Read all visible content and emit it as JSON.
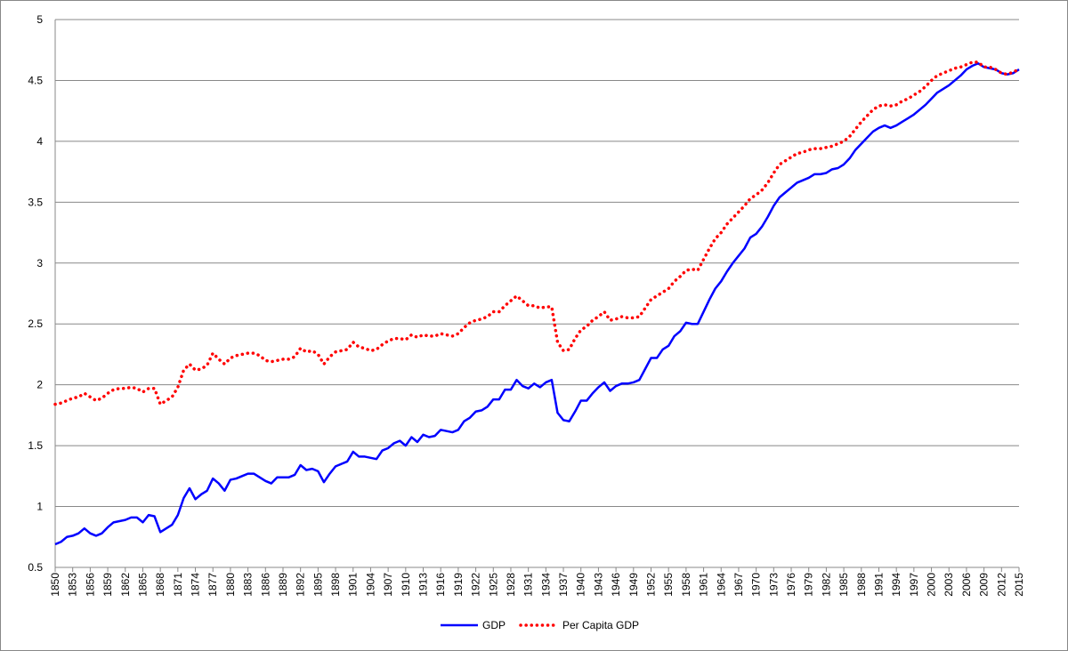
{
  "chart_data": {
    "type": "line",
    "x": [
      1850,
      1851,
      1852,
      1853,
      1854,
      1855,
      1856,
      1857,
      1858,
      1859,
      1860,
      1861,
      1862,
      1863,
      1864,
      1865,
      1866,
      1867,
      1868,
      1869,
      1870,
      1871,
      1872,
      1873,
      1874,
      1875,
      1876,
      1877,
      1878,
      1879,
      1880,
      1881,
      1882,
      1883,
      1884,
      1885,
      1886,
      1887,
      1888,
      1889,
      1890,
      1891,
      1892,
      1893,
      1894,
      1895,
      1896,
      1897,
      1898,
      1899,
      1900,
      1901,
      1902,
      1903,
      1904,
      1905,
      1906,
      1907,
      1908,
      1909,
      1910,
      1911,
      1912,
      1913,
      1914,
      1915,
      1916,
      1917,
      1918,
      1919,
      1920,
      1921,
      1922,
      1923,
      1924,
      1925,
      1926,
      1927,
      1928,
      1929,
      1930,
      1931,
      1932,
      1933,
      1934,
      1935,
      1936,
      1937,
      1938,
      1939,
      1940,
      1941,
      1942,
      1943,
      1944,
      1945,
      1946,
      1947,
      1948,
      1949,
      1950,
      1951,
      1952,
      1953,
      1954,
      1955,
      1956,
      1957,
      1958,
      1959,
      1960,
      1961,
      1962,
      1963,
      1964,
      1965,
      1966,
      1967,
      1968,
      1969,
      1970,
      1971,
      1972,
      1973,
      1974,
      1975,
      1976,
      1977,
      1978,
      1979,
      1980,
      1981,
      1982,
      1983,
      1984,
      1985,
      1986,
      1987,
      1988,
      1989,
      1990,
      1991,
      1992,
      1993,
      1994,
      1995,
      1996,
      1997,
      1998,
      1999,
      2000,
      2001,
      2002,
      2003,
      2004,
      2005,
      2006,
      2007,
      2008,
      2009,
      2010,
      2011,
      2012,
      2013,
      2014,
      2015
    ],
    "series": [
      {
        "name": "GDP",
        "color": "#0000ff",
        "style": "solid",
        "values": [
          0.69,
          0.71,
          0.75,
          0.76,
          0.78,
          0.82,
          0.78,
          0.76,
          0.78,
          0.83,
          0.87,
          0.88,
          0.89,
          0.91,
          0.91,
          0.87,
          0.93,
          0.92,
          0.79,
          0.82,
          0.85,
          0.93,
          1.07,
          1.15,
          1.06,
          1.1,
          1.13,
          1.23,
          1.19,
          1.13,
          1.22,
          1.23,
          1.25,
          1.27,
          1.27,
          1.24,
          1.21,
          1.19,
          1.24,
          1.24,
          1.24,
          1.26,
          1.34,
          1.3,
          1.31,
          1.29,
          1.2,
          1.27,
          1.33,
          1.35,
          1.37,
          1.45,
          1.41,
          1.41,
          1.4,
          1.39,
          1.46,
          1.48,
          1.52,
          1.54,
          1.5,
          1.57,
          1.53,
          1.59,
          1.57,
          1.58,
          1.63,
          1.62,
          1.61,
          1.63,
          1.7,
          1.73,
          1.78,
          1.79,
          1.82,
          1.88,
          1.88,
          1.96,
          1.96,
          2.04,
          1.99,
          1.97,
          2.01,
          1.98,
          2.02,
          2.04,
          1.77,
          1.71,
          1.7,
          1.78,
          1.87,
          1.87,
          1.93,
          1.98,
          2.02,
          1.95,
          1.99,
          2.01,
          2.01,
          2.02,
          2.04,
          2.13,
          2.22,
          2.22,
          2.29,
          2.32,
          2.4,
          2.44,
          2.51,
          2.5,
          2.5,
          2.6,
          2.7,
          2.79,
          2.85,
          2.93,
          3.0,
          3.06,
          3.12,
          3.21,
          3.24,
          3.3,
          3.38,
          3.47,
          3.54,
          3.58,
          3.62,
          3.66,
          3.68,
          3.7,
          3.73,
          3.73,
          3.74,
          3.77,
          3.78,
          3.81,
          3.86,
          3.93,
          3.98,
          4.03,
          4.08,
          4.11,
          4.13,
          4.11,
          4.13,
          4.16,
          4.19,
          4.22,
          4.26,
          4.3,
          4.35,
          4.4,
          4.43,
          4.46,
          4.5,
          4.54,
          4.59,
          4.62,
          4.64,
          4.61,
          4.6,
          4.59,
          4.56,
          4.55,
          4.56,
          4.59
        ]
      },
      {
        "name": "Per Capita GDP",
        "color": "#ff0000",
        "style": "dotted",
        "values": [
          1.84,
          1.85,
          1.87,
          1.89,
          1.9,
          1.93,
          1.9,
          1.87,
          1.89,
          1.93,
          1.96,
          1.97,
          1.97,
          1.98,
          1.97,
          1.94,
          1.97,
          1.97,
          1.84,
          1.87,
          1.9,
          1.98,
          2.12,
          2.17,
          2.12,
          2.13,
          2.16,
          2.26,
          2.21,
          2.17,
          2.22,
          2.24,
          2.25,
          2.26,
          2.26,
          2.24,
          2.2,
          2.19,
          2.2,
          2.21,
          2.21,
          2.23,
          2.3,
          2.27,
          2.28,
          2.25,
          2.17,
          2.23,
          2.27,
          2.28,
          2.29,
          2.35,
          2.31,
          2.3,
          2.28,
          2.29,
          2.33,
          2.36,
          2.38,
          2.38,
          2.37,
          2.41,
          2.39,
          2.41,
          2.4,
          2.4,
          2.42,
          2.41,
          2.4,
          2.42,
          2.47,
          2.51,
          2.53,
          2.54,
          2.56,
          2.6,
          2.6,
          2.65,
          2.69,
          2.73,
          2.69,
          2.65,
          2.65,
          2.63,
          2.64,
          2.64,
          2.35,
          2.28,
          2.29,
          2.38,
          2.45,
          2.48,
          2.53,
          2.56,
          2.6,
          2.53,
          2.54,
          2.56,
          2.55,
          2.55,
          2.56,
          2.63,
          2.7,
          2.73,
          2.76,
          2.79,
          2.85,
          2.89,
          2.94,
          2.95,
          2.94,
          3.03,
          3.12,
          3.2,
          3.25,
          3.32,
          3.37,
          3.42,
          3.47,
          3.53,
          3.56,
          3.6,
          3.66,
          3.74,
          3.81,
          3.84,
          3.87,
          3.9,
          3.91,
          3.93,
          3.94,
          3.94,
          3.95,
          3.96,
          3.98,
          4.0,
          4.04,
          4.1,
          4.16,
          4.21,
          4.26,
          4.29,
          4.3,
          4.29,
          4.3,
          4.33,
          4.35,
          4.38,
          4.41,
          4.45,
          4.5,
          4.54,
          4.56,
          4.58,
          4.6,
          4.61,
          4.63,
          4.65,
          4.65,
          4.61,
          4.61,
          4.59,
          4.56,
          4.55,
          4.57,
          4.59
        ]
      }
    ],
    "xlim": [
      1850,
      2015
    ],
    "xticks": [
      1850,
      1853,
      1856,
      1859,
      1862,
      1865,
      1868,
      1871,
      1874,
      1877,
      1880,
      1883,
      1886,
      1889,
      1892,
      1895,
      1898,
      1901,
      1904,
      1907,
      1910,
      1913,
      1916,
      1919,
      1922,
      1925,
      1928,
      1931,
      1934,
      1937,
      1940,
      1943,
      1946,
      1949,
      1952,
      1955,
      1958,
      1961,
      1964,
      1967,
      1970,
      1973,
      1976,
      1979,
      1982,
      1985,
      1988,
      1991,
      1994,
      1997,
      2000,
      2003,
      2006,
      2009,
      2012,
      2015
    ],
    "ylim": [
      0.5,
      5
    ],
    "yticks": [
      0.5,
      1,
      1.5,
      2,
      2.5,
      3,
      3.5,
      4,
      4.5,
      5
    ],
    "grid": true,
    "legend": "bottom"
  }
}
